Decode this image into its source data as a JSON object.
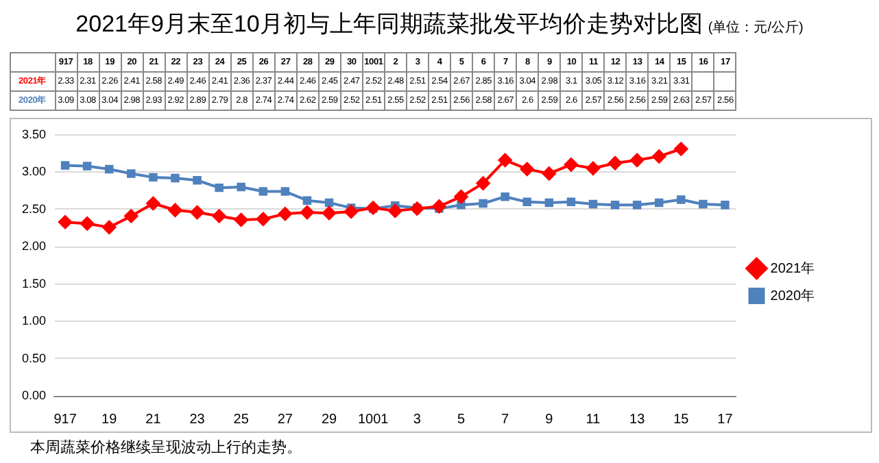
{
  "chart_data": {
    "type": "line",
    "title": "2021年9月末至10月初与上年同期蔬菜批发平均价走势对比图",
    "subtitle": "(单位：元/公斤)",
    "categories": [
      "917",
      "18",
      "19",
      "20",
      "21",
      "22",
      "23",
      "24",
      "25",
      "26",
      "27",
      "28",
      "29",
      "30",
      "1001",
      "2",
      "3",
      "4",
      "5",
      "6",
      "7",
      "8",
      "9",
      "10",
      "11",
      "12",
      "13",
      "14",
      "15",
      "16",
      "17"
    ],
    "series": [
      {
        "name": "2021年",
        "color": "#ff0000",
        "marker": "diamond",
        "values": [
          2.33,
          2.31,
          2.26,
          2.41,
          2.58,
          2.49,
          2.46,
          2.41,
          2.36,
          2.37,
          2.44,
          2.46,
          2.45,
          2.47,
          2.52,
          2.48,
          2.51,
          2.54,
          2.67,
          2.85,
          3.16,
          3.04,
          2.98,
          3.1,
          3.05,
          3.12,
          3.16,
          3.21,
          3.31,
          null,
          null
        ]
      },
      {
        "name": "2020年",
        "color": "#4f81bd",
        "marker": "square",
        "values": [
          3.09,
          3.08,
          3.04,
          2.98,
          2.93,
          2.92,
          2.89,
          2.79,
          2.8,
          2.74,
          2.74,
          2.62,
          2.59,
          2.52,
          2.51,
          2.55,
          2.52,
          2.51,
          2.56,
          2.58,
          2.67,
          2.6,
          2.59,
          2.6,
          2.57,
          2.56,
          2.56,
          2.59,
          2.63,
          2.57,
          2.56
        ]
      }
    ],
    "ylim": [
      0,
      3.5
    ],
    "yticks": [
      {
        "value": 0,
        "label": "0.00"
      },
      {
        "value": 0.5,
        "label": "0.50"
      },
      {
        "value": 1,
        "label": "1.00"
      },
      {
        "value": 1.5,
        "label": "1.50"
      },
      {
        "value": 2,
        "label": "2.00"
      },
      {
        "value": 2.5,
        "label": "2.50"
      },
      {
        "value": 3,
        "label": "3.00"
      },
      {
        "value": 3.5,
        "label": "3.50"
      }
    ],
    "grid": "y",
    "legend": "right",
    "data_labels": true,
    "line_style": "solid",
    "annotations": [
      "本周蔬菜价格继续呈现波动上行的走势。"
    ]
  }
}
